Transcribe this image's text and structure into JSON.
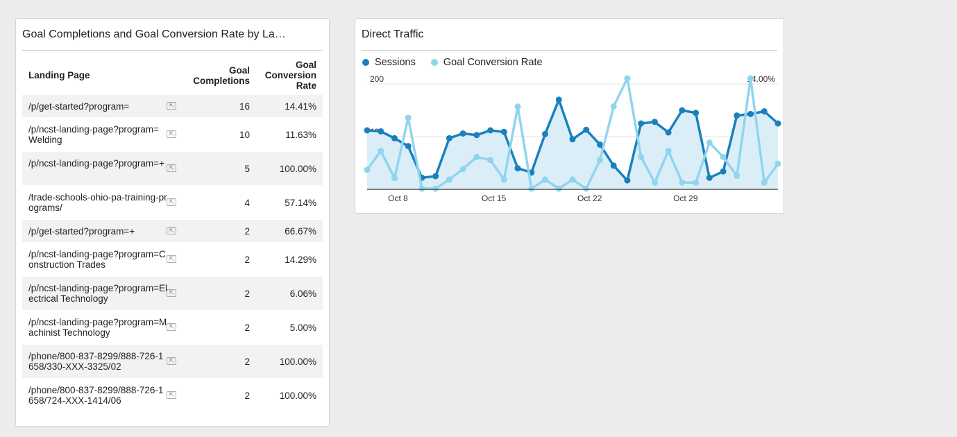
{
  "table_widget": {
    "title": "Goal Completions and Goal Conversion Rate by La…",
    "headers": {
      "landing_page": "Landing Page",
      "goal_completions": [
        "Goal",
        "Completions"
      ],
      "goal_conversion_rate": [
        "Goal",
        "Conversion",
        "Rate"
      ]
    },
    "rows": [
      {
        "page": "/p/get-started?program=",
        "completions": "16",
        "rate": "14.41%"
      },
      {
        "page": "/p/ncst-landing-page?program=Welding",
        "completions": "10",
        "rate": "11.63%"
      },
      {
        "page": "/p/ncst-landing-page?program=+",
        "completions": "5",
        "rate": "100.00%"
      },
      {
        "page": "/trade-schools-ohio-pa-training-programs/",
        "completions": "4",
        "rate": "57.14%"
      },
      {
        "page": "/p/get-started?program=+",
        "completions": "2",
        "rate": "66.67%"
      },
      {
        "page": "/p/ncst-landing-page?program=Construction Trades",
        "completions": "2",
        "rate": "14.29%"
      },
      {
        "page": "/p/ncst-landing-page?program=Electrical Technology",
        "completions": "2",
        "rate": "6.06%"
      },
      {
        "page": "/p/ncst-landing-page?program=Machinist Technology",
        "completions": "2",
        "rate": "5.00%"
      },
      {
        "page": "/phone/800-837-8299/888-726-1658/330-XXX-3325/02",
        "completions": "2",
        "rate": "100.00%"
      },
      {
        "page": "/phone/800-837-8299/888-726-1658/724-XXX-1414/06",
        "completions": "2",
        "rate": "100.00%"
      }
    ]
  },
  "chart_widget": {
    "title": "Direct Traffic",
    "legend": [
      "Sessions",
      "Goal Conversion Rate"
    ]
  },
  "chart_data": {
    "type": "line",
    "title": "Direct Traffic",
    "x_tick_labels": [
      "Oct 8",
      "Oct 15",
      "Oct 22",
      "Oct 29"
    ],
    "x_tick_indices": [
      2,
      9,
      16,
      23
    ],
    "y_left": {
      "ticks": [
        "200",
        "100"
      ],
      "ylim": [
        0,
        200
      ]
    },
    "y_right": {
      "ticks": [
        "14.00%",
        "7.00%"
      ],
      "ylim": [
        0,
        14
      ]
    },
    "grid": true,
    "legend_position": "top-left",
    "series": [
      {
        "name": "Sessions",
        "axis": "left",
        "color": "#1a80bd",
        "area": true,
        "values": [
          112,
          110,
          97,
          82,
          22,
          25,
          97,
          106,
          103,
          112,
          109,
          40,
          32,
          105,
          170,
          95,
          113,
          85,
          45,
          17,
          125,
          128,
          108,
          150,
          145,
          22,
          34,
          140,
          143,
          148,
          125
        ]
      },
      {
        "name": "Goal Conversion Rate",
        "axis": "right",
        "color": "#90d5ee",
        "area": false,
        "values": [
          2.6,
          5.1,
          1.5,
          9.5,
          0.1,
          0.1,
          1.3,
          2.7,
          4.3,
          3.9,
          1.3,
          11.0,
          0.1,
          1.3,
          0.1,
          1.3,
          0.1,
          3.9,
          11.0,
          17.0,
          4.3,
          0.9,
          5.1,
          0.9,
          0.9,
          6.2,
          4.3,
          1.8,
          17.8,
          0.9,
          3.4
        ]
      }
    ]
  }
}
